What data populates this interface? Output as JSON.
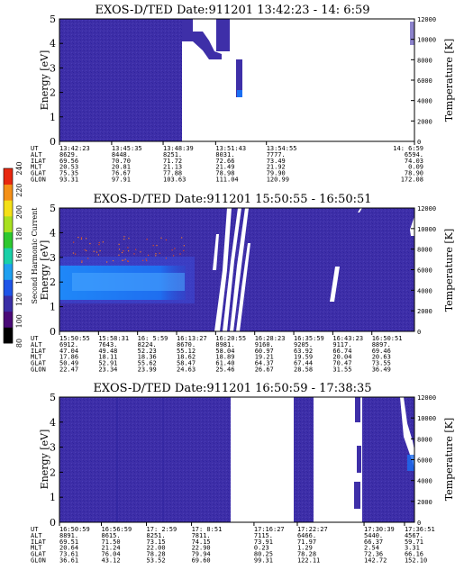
{
  "colors": {
    "background": "#3e2fa8",
    "background_dark": "#2a1d8a",
    "flux_blue": "#1a6ef2",
    "flux_cyan": "#4aa8ff",
    "flux_orange": "#f07a2a",
    "gap": "#ffffff"
  },
  "colorbar": {
    "label": "Second Harmonic Current",
    "ticks": [
      "80",
      "100",
      "120",
      "140",
      "160",
      "180",
      "200",
      "220",
      "240"
    ],
    "colors": [
      "#000000",
      "#4a0a78",
      "#3a2ea6",
      "#1f55e8",
      "#1fa0f0",
      "#19d0a8",
      "#2ec830",
      "#a8e020",
      "#f4e018",
      "#f49018",
      "#e82810"
    ]
  },
  "panels": [
    {
      "title": "EXOS-D/TED   Date:911201  13:42:23 - 14: 6:59",
      "ylabel_left": "Energy [eV]",
      "ylabel_right": "Temperature [K]",
      "y_ticks": [
        "0",
        "1",
        "2",
        "3",
        "4",
        "5"
      ],
      "t_ticks": [
        "0",
        "2000",
        "4000",
        "6000",
        "8000",
        "10000",
        "12000"
      ],
      "row_labels": [
        "UT",
        "ALT",
        "ILAT",
        "MLT",
        "GLAT",
        "GLON"
      ],
      "columns": [
        {
          "frac": 0.0,
          "values": [
            "13:42:23",
            "8629.",
            "69.56",
            "20.53",
            "75.35",
            "93.31"
          ]
        },
        {
          "frac": 0.147,
          "values": [
            "13:45:35",
            "8448.",
            "70.70",
            "20.81",
            "76.67",
            "97.91"
          ]
        },
        {
          "frac": 0.292,
          "values": [
            "13:48:39",
            "8251.",
            "71.72",
            "21.13",
            "77.88",
            "103.63"
          ]
        },
        {
          "frac": 0.44,
          "values": [
            "13:51:43",
            "8031.",
            "72.66",
            "21.49",
            "78.98",
            "111.04"
          ]
        },
        {
          "frac": 0.583,
          "values": [
            "13:54:55",
            "7777.",
            "73.49",
            "21.92",
            "79.90",
            "120.99"
          ]
        },
        {
          "frac": 1.0,
          "values": [
            "14: 6:59",
            "6594.",
            "74.03",
            "0.09",
            "78.90",
            "172.08"
          ]
        }
      ]
    },
    {
      "title": "EXOS-D/TED   Date:911201  15:50:55 - 16:50:51",
      "ylabel_left": "Energy [eV]",
      "ylabel_right": "Temperature [K]",
      "y_ticks": [
        "0",
        "1",
        "2",
        "3",
        "4",
        "5"
      ],
      "t_ticks": [
        "0",
        "2000",
        "4000",
        "6000",
        "8000",
        "10000",
        "12000"
      ],
      "row_labels": [
        "UT",
        "ALT",
        "ILAT",
        "MLT",
        "GLAT",
        "GLON"
      ],
      "columns": [
        {
          "frac": 0.0,
          "values": [
            "15:50:55",
            "6912.",
            "47.04",
            "17.86",
            "50.49",
            "22.47"
          ]
        },
        {
          "frac": 0.11,
          "values": [
            "15:58:31",
            "7643.",
            "49.48",
            "18.11",
            "52.91",
            "23.34"
          ]
        },
        {
          "frac": 0.22,
          "values": [
            "16: 5:59",
            "8224.",
            "52.23",
            "18.36",
            "55.62",
            "23.99"
          ]
        },
        {
          "frac": 0.33,
          "values": [
            "16:13:27",
            "8670.",
            "55.12",
            "18.62",
            "58.47",
            "24.63"
          ]
        },
        {
          "frac": 0.44,
          "values": [
            "16:20:55",
            "8981.",
            "58.04",
            "18.89",
            "61.40",
            "25.46"
          ]
        },
        {
          "frac": 0.55,
          "values": [
            "16:28:23",
            "9160.",
            "60.97",
            "19.21",
            "64.37",
            "26.67"
          ]
        },
        {
          "frac": 0.66,
          "values": [
            "16:35:59",
            "9205.",
            "63.92",
            "19.59",
            "67.44",
            "28.58"
          ]
        },
        {
          "frac": 0.77,
          "values": [
            "16:43:23",
            "9117.",
            "66.74",
            "20.04",
            "70.47",
            "31.55"
          ]
        },
        {
          "frac": 0.88,
          "values": [
            "16:50:51",
            "8897.",
            "69.46",
            "20.63",
            "73.55",
            "36.49"
          ]
        }
      ]
    },
    {
      "title": "EXOS-D/TED   Date:911201  16:50:59 - 17:38:35",
      "ylabel_left": "Energy [eV]",
      "ylabel_right": "Temperature [K]",
      "y_ticks": [
        "0",
        "1",
        "2",
        "3",
        "4",
        "5"
      ],
      "t_ticks": [
        "0",
        "2000",
        "4000",
        "6000",
        "8000",
        "10000",
        "12000"
      ],
      "row_labels": [
        "UT",
        "ALT",
        "ILAT",
        "MLT",
        "GLAT",
        "GLON"
      ],
      "columns": [
        {
          "frac": 0.0,
          "values": [
            "16:50:59",
            "8891.",
            "69.51",
            "20.64",
            "73.61",
            "36.61"
          ]
        },
        {
          "frac": 0.118,
          "values": [
            "16:56:59",
            "8615.",
            "71.50",
            "21.24",
            "76.04",
            "43.12"
          ]
        },
        {
          "frac": 0.245,
          "values": [
            "17: 2:59",
            "8251.",
            "73.15",
            "22.00",
            "78.28",
            "53.52"
          ]
        },
        {
          "frac": 0.372,
          "values": [
            "17: 8:51",
            "7811.",
            "74.15",
            "22.90",
            "79.94",
            "69.60"
          ]
        },
        {
          "frac": 0.548,
          "values": [
            "17:16:27",
            "7115.",
            "73.91",
            "0.23",
            "80.25",
            "99.31"
          ]
        },
        {
          "frac": 0.67,
          "values": [
            "17:22:27",
            "6466.",
            "71.97",
            "1.29",
            "78.28",
            "122.11"
          ]
        },
        {
          "frac": 0.858,
          "values": [
            "17:30:39",
            "5440.",
            "66.37",
            "2.54",
            "72.36",
            "142.72"
          ]
        },
        {
          "frac": 0.972,
          "values": [
            "17:36:51",
            "4567.",
            "59.71",
            "3.31",
            "66.16",
            "152.10"
          ]
        }
      ]
    }
  ],
  "chart_data": [
    {
      "type": "heatmap",
      "title": "EXOS-D/TED   Date:911201  13:42:23 - 14: 6:59",
      "ylabel": "Energy [eV]",
      "y2label": "Temperature [K]",
      "ylim": [
        0,
        5
      ],
      "y2lim": [
        0,
        12000
      ],
      "x_range": [
        "13:42:23",
        "14: 6:59"
      ],
      "data_coverage": "13:42:23 - about 13:57 (blank afterwards)",
      "dominant_level": "near background, ~100"
    },
    {
      "type": "heatmap",
      "title": "EXOS-D/TED   Date:911201  15:50:55 - 16:50:51",
      "ylabel": "Energy [eV]",
      "y2label": "Temperature [K]",
      "ylim": [
        0,
        5
      ],
      "y2lim": [
        0,
        12000
      ],
      "x_range": [
        "15:50:55",
        "16:50:51"
      ],
      "colorbar_label": "Second Harmonic Current",
      "colorbar_range": [
        80,
        240
      ],
      "enhanced_band": {
        "energy_eV": [
          1.5,
          2.8
        ],
        "peak_energy_eV": 2.0,
        "time_range": [
          "15:50:55",
          "16: 5:59"
        ],
        "level": "~140-160"
      },
      "sparse_high_points": {
        "energy_eV": [
          2.8,
          4.0
        ],
        "level": "~220-240"
      }
    },
    {
      "type": "heatmap",
      "title": "EXOS-D/TED   Date:911201  16:50:59 - 17:38:35",
      "ylabel": "Energy [eV]",
      "y2label": "Temperature [K]",
      "ylim": [
        0,
        5
      ],
      "y2lim": [
        0,
        12000
      ],
      "x_range": [
        "16:50:59",
        "17:38:35"
      ],
      "data_gaps": [
        "about 17:13 - 17:21",
        "about 17:26 - 17:34"
      ],
      "dominant_level": "near background, ~100"
    }
  ]
}
